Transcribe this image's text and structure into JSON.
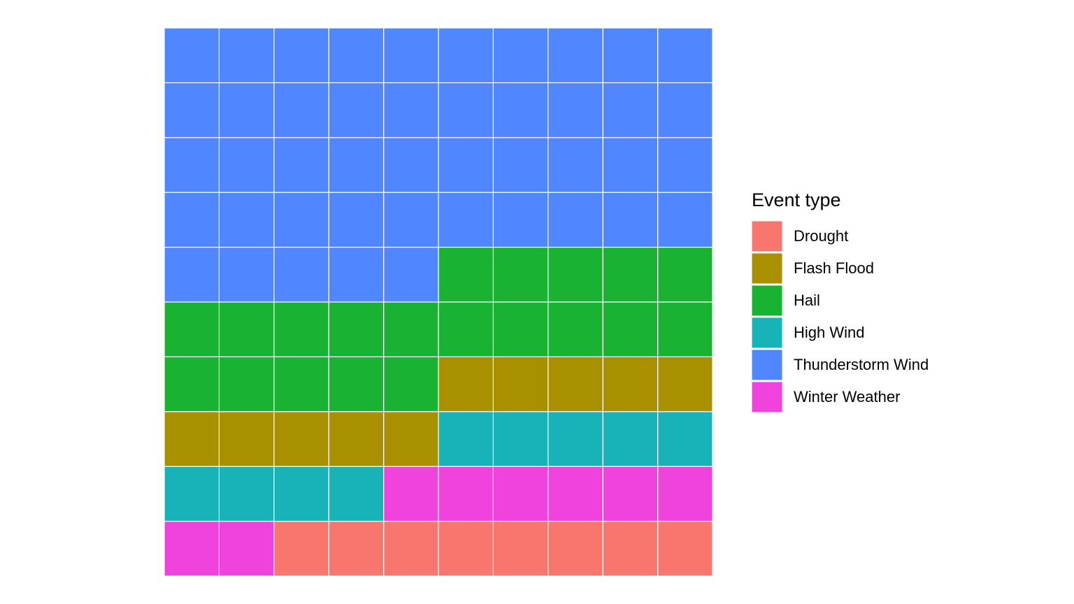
{
  "chart_data": {
    "type": "waffle",
    "rows": 10,
    "columns": 10,
    "legend_title": "Event type",
    "series": [
      {
        "name": "Drought",
        "color": "#f8766d",
        "values": [
          8
        ]
      },
      {
        "name": "Winter Weather",
        "color": "#f042dc",
        "values": [
          8
        ]
      },
      {
        "name": "High Wind",
        "color": "#17b3b8",
        "values": [
          9
        ]
      },
      {
        "name": "Flash Flood",
        "color": "#a89000",
        "values": [
          10
        ]
      },
      {
        "name": "Hail",
        "color": "#19b232",
        "values": [
          20
        ]
      },
      {
        "name": "Thunderstorm Wind",
        "color": "#5086ff",
        "values": [
          45
        ]
      }
    ]
  }
}
